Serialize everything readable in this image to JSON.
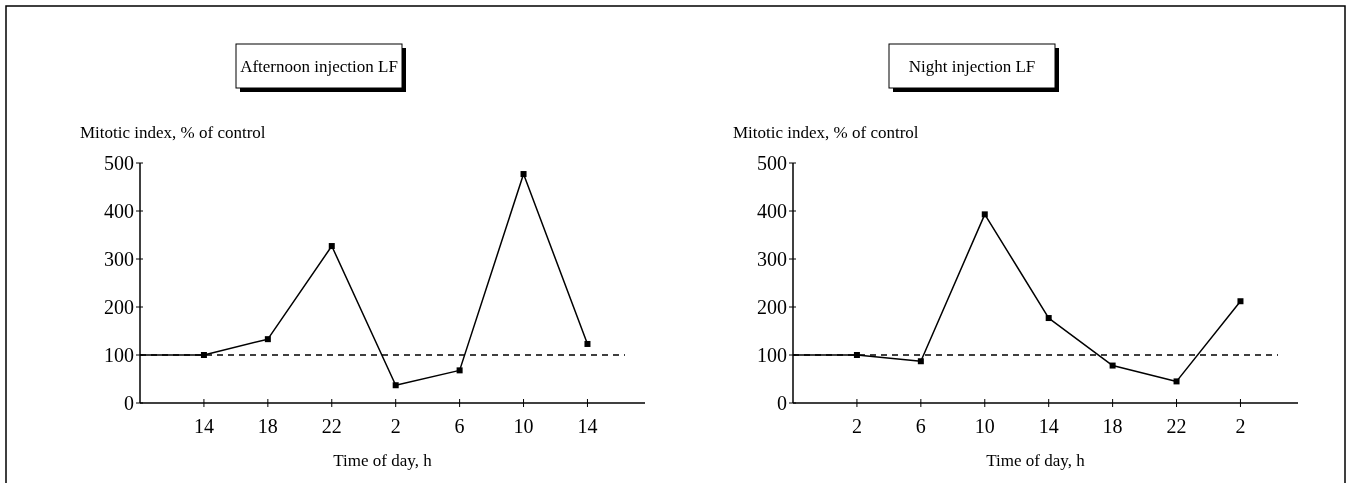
{
  "chart_data": [
    {
      "type": "line",
      "title": "Afternoon injection LF",
      "ylabel": "Mitotic index, % of control",
      "xlabel": "Time of day, h",
      "categories": [
        null,
        "14",
        "18",
        "22",
        "2",
        "6",
        "10",
        "14"
      ],
      "series": [
        {
          "color": "#000000",
          "values": [
            100,
            100,
            133,
            327,
            37,
            68,
            477,
            123
          ]
        }
      ],
      "ylim": [
        0,
        500
      ],
      "yticks": [
        0,
        100,
        200,
        300,
        400,
        500
      ],
      "marker": "square",
      "line_style": "solid",
      "ref_lines": [
        {
          "axis": "y",
          "value": 100,
          "line_style": "dashed",
          "color": "#000000"
        }
      ]
    },
    {
      "type": "line",
      "title": "Night injection LF",
      "ylabel": "Mitotic index, % of control",
      "xlabel": "Time of day, h",
      "categories": [
        null,
        "2",
        "6",
        "10",
        "14",
        "18",
        "22",
        "2"
      ],
      "series": [
        {
          "color": "#000000",
          "values": [
            100,
            100,
            87,
            393,
            177,
            78,
            45,
            212
          ]
        }
      ],
      "ylim": [
        0,
        500
      ],
      "yticks": [
        0,
        100,
        200,
        300,
        400,
        500
      ],
      "marker": "square",
      "line_style": "solid",
      "ref_lines": [
        {
          "axis": "y",
          "value": 100,
          "line_style": "dashed",
          "color": "#000000"
        }
      ]
    }
  ]
}
